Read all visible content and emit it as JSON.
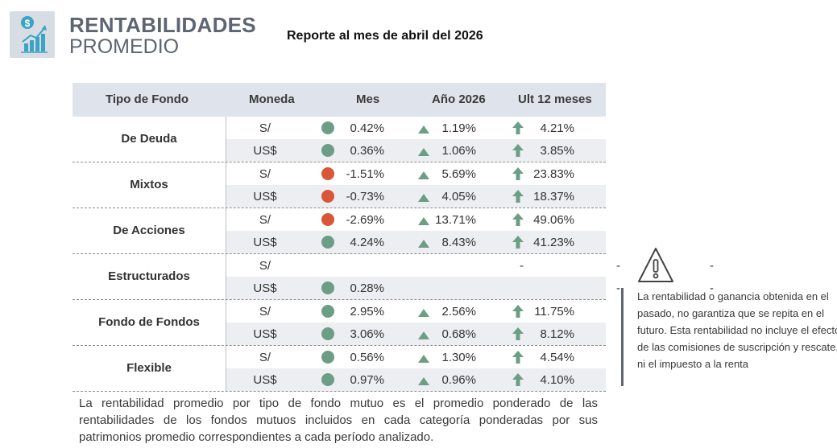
{
  "header": {
    "title_line1": "RENTABILIDADES",
    "title_line2": "PROMEDIO",
    "report": "Reporte al mes de abril del 2026",
    "logo_icon": "chart-growth-dollar-icon"
  },
  "table": {
    "headers": [
      "Tipo de Fondo",
      "Moneda",
      "Mes",
      "Año 2026",
      "Ult 12 meses"
    ],
    "groups": [
      {
        "name": "De Deuda",
        "rows": [
          {
            "currency": "S/",
            "mes": "0.42%",
            "mes_status": "green",
            "anio": "1.19%",
            "ult12": "4.21%"
          },
          {
            "currency": "US$",
            "mes": "0.36%",
            "mes_status": "green",
            "anio": "1.06%",
            "ult12": "3.85%"
          }
        ]
      },
      {
        "name": "Mixtos",
        "rows": [
          {
            "currency": "S/",
            "mes": "-1.51%",
            "mes_status": "red",
            "anio": "5.69%",
            "ult12": "23.83%"
          },
          {
            "currency": "US$",
            "mes": "-0.73%",
            "mes_status": "red",
            "anio": "4.05%",
            "ult12": "18.37%"
          }
        ]
      },
      {
        "name": "De Acciones",
        "rows": [
          {
            "currency": "S/",
            "mes": "-2.69%",
            "mes_status": "red",
            "anio": "13.71%",
            "ult12": "49.06%"
          },
          {
            "currency": "US$",
            "mes": "4.24%",
            "mes_status": "green",
            "anio": "8.43%",
            "ult12": "41.23%"
          }
        ]
      },
      {
        "name": "Estructurados",
        "rows": [
          {
            "currency": "S/",
            "mes": "-",
            "mes_status": "none",
            "anio": "-",
            "ult12": "-"
          },
          {
            "currency": "US$",
            "mes": "0.28%",
            "mes_status": "green",
            "anio": "-",
            "ult12": "-"
          }
        ]
      },
      {
        "name": "Fondo de Fondos",
        "rows": [
          {
            "currency": "S/",
            "mes": "2.95%",
            "mes_status": "green",
            "anio": "2.56%",
            "ult12": "11.75%"
          },
          {
            "currency": "US$",
            "mes": "3.06%",
            "mes_status": "green",
            "anio": "0.68%",
            "ult12": "8.12%"
          }
        ]
      },
      {
        "name": "Flexible",
        "rows": [
          {
            "currency": "S/",
            "mes": "0.56%",
            "mes_status": "green",
            "anio": "1.30%",
            "ult12": "4.54%"
          },
          {
            "currency": "US$",
            "mes": "0.97%",
            "mes_status": "green",
            "anio": "0.96%",
            "ult12": "4.10%"
          }
        ]
      }
    ]
  },
  "footnote": "La rentabilidad promedio por tipo de fondo mutuo es el promedio ponderado de las rentabilidades de los fondos mutuos incluidos en cada categoría ponderadas por sus patrimonios promedio correspondientes a cada período analizado.",
  "disclaimer": "La rentabilidad o ganancia obtenida en el pasado, no garantiza que se repita en el futuro. Esta rentabilidad no incluye el efecto de las comisiones de suscripción y rescate, ni el impuesto a la renta",
  "colors": {
    "positive": "#6c9e86",
    "negative": "#d95638",
    "header_bg": "#dfe3eb"
  }
}
